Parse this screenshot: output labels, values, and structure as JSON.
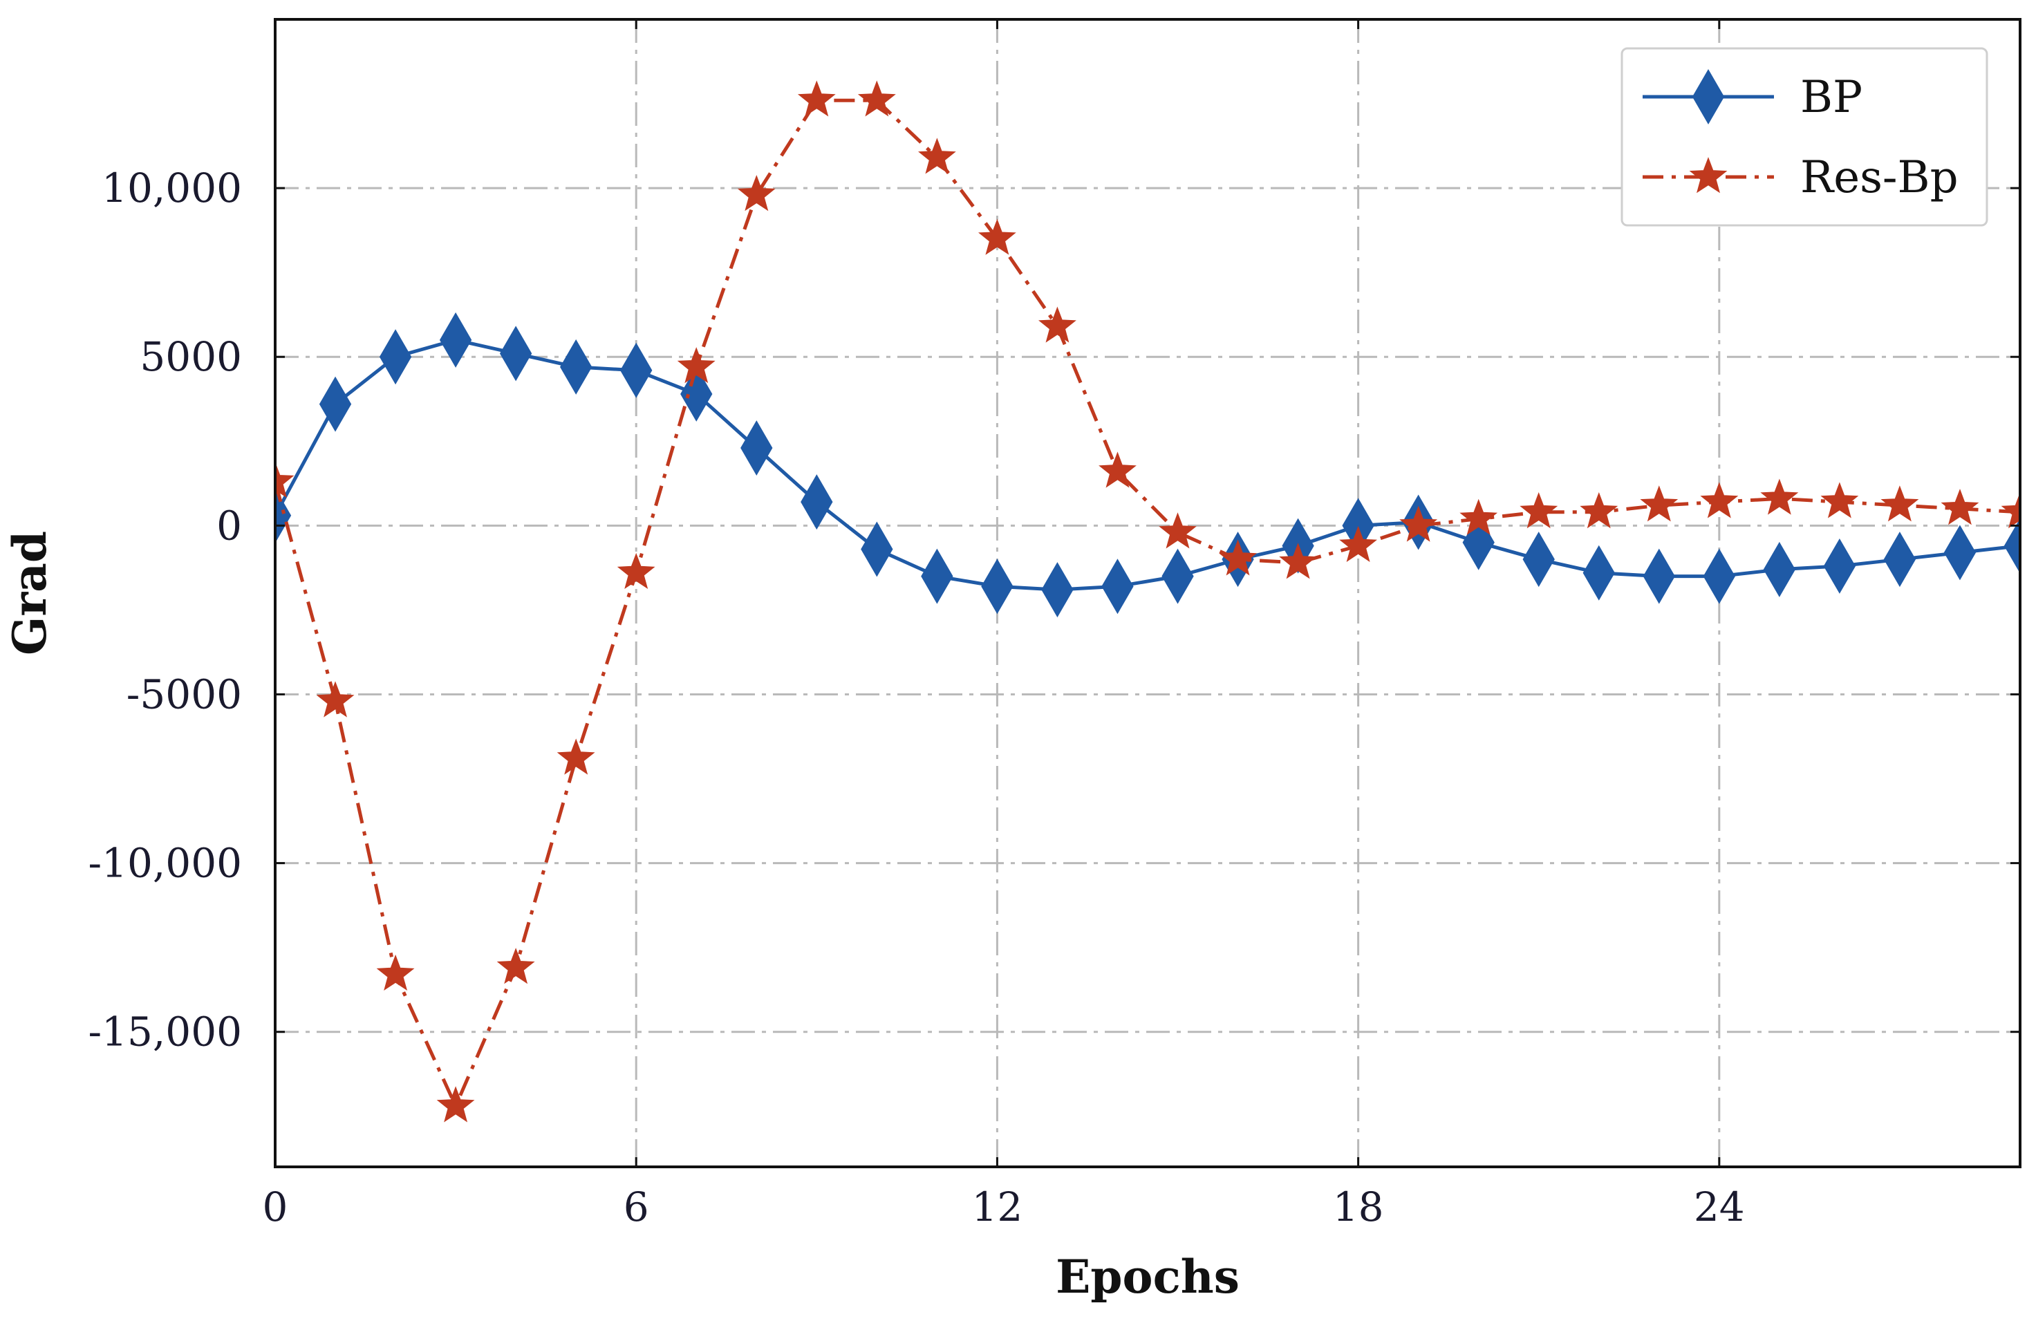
{
  "chart_data": {
    "type": "line",
    "title": "",
    "xlabel": "Epochs",
    "ylabel": "Grad",
    "xlim": [
      0,
      29
    ],
    "ylim": [
      -19000,
      15000
    ],
    "xticks": [
      0,
      6,
      12,
      18,
      24
    ],
    "xtick_labels": [
      "0",
      "6",
      "12",
      "18",
      "24"
    ],
    "yticks": [
      10000,
      5000,
      0,
      -5000,
      -10000,
      -15000
    ],
    "ytick_labels": [
      "10,000",
      "5000",
      "0",
      "-5000",
      "-10,000",
      "-15,000"
    ],
    "grid": true,
    "legend_position": "top-right",
    "x": [
      0,
      1,
      2,
      3,
      4,
      5,
      6,
      7,
      8,
      9,
      10,
      11,
      12,
      13,
      14,
      15,
      16,
      17,
      18,
      19,
      20,
      21,
      22,
      23,
      24,
      25,
      26,
      27,
      28,
      29
    ],
    "series": [
      {
        "name": "BP",
        "color": "#1f5aa6",
        "marker": "diamond",
        "linestyle": "solid",
        "values": [
          300,
          3600,
          5000,
          5500,
          5100,
          4700,
          4600,
          3900,
          2300,
          700,
          -700,
          -1500,
          -1800,
          -1900,
          -1800,
          -1500,
          -1000,
          -600,
          0,
          100,
          -500,
          -1000,
          -1400,
          -1500,
          -1500,
          -1300,
          -1200,
          -1000,
          -800,
          -600
        ]
      },
      {
        "name": "Res-Bp",
        "color": "#c0391e",
        "marker": "star",
        "linestyle": "dashdot",
        "values": [
          1300,
          -5200,
          -13300,
          -17200,
          -13100,
          -6900,
          -1400,
          4700,
          9800,
          12600,
          12600,
          10900,
          8500,
          5900,
          1600,
          -200,
          -1000,
          -1100,
          -600,
          0,
          200,
          400,
          400,
          600,
          700,
          800,
          700,
          600,
          500,
          400
        ]
      }
    ]
  }
}
